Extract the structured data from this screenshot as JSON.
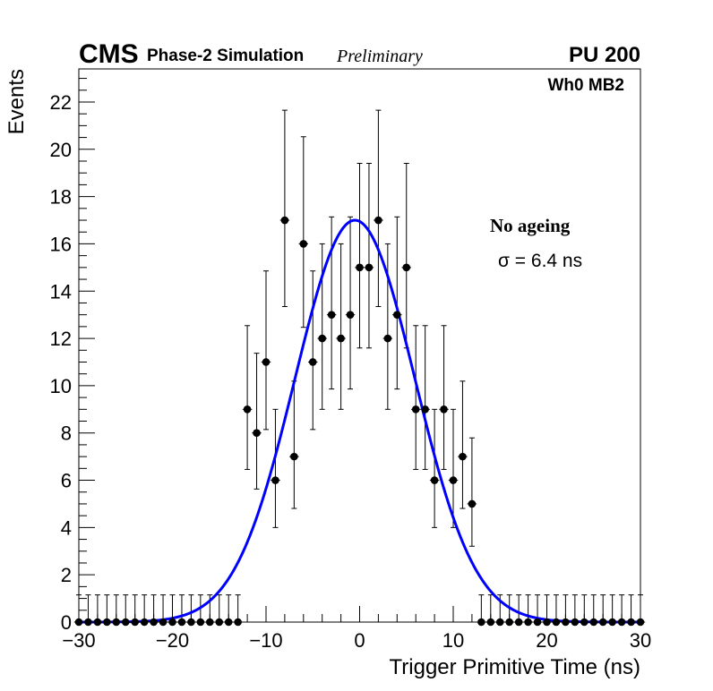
{
  "chart_data": {
    "type": "scatter",
    "title": "",
    "header": {
      "experiment": "CMS",
      "label": "Phase-2 Simulation",
      "status": "Preliminary",
      "pileup": "PU 200",
      "region": "Wh0 MB2"
    },
    "xlabel": "Trigger Primitive Time (ns)",
    "ylabel": "Events",
    "xlim": [
      -30,
      30
    ],
    "ylim": [
      0,
      23.4
    ],
    "x_ticks": [
      -30,
      -20,
      -10,
      0,
      10,
      20,
      30
    ],
    "x_tick_labels": [
      "−30",
      "−20",
      "−10",
      "0",
      "10",
      "20",
      "30"
    ],
    "y_ticks": [
      0,
      2,
      4,
      6,
      8,
      10,
      12,
      14,
      16,
      18,
      20,
      22
    ],
    "y_tick_labels": [
      "0",
      "2",
      "4",
      "6",
      "8",
      "10",
      "12",
      "14",
      "16",
      "18",
      "20",
      "22"
    ],
    "bin_width": 1,
    "series": [
      {
        "name": "Trigger primitives (histogram)",
        "style": "markers-with-errors",
        "color": "#000000",
        "x": [
          -30,
          -29,
          -28,
          -27,
          -26,
          -25,
          -24,
          -23,
          -22,
          -21,
          -20,
          -19,
          -18,
          -17,
          -16,
          -15,
          -14,
          -13,
          -12,
          -11,
          -10,
          -9,
          -8,
          -7,
          -6,
          -5,
          -4,
          -3,
          -2,
          -1,
          0,
          1,
          2,
          3,
          4,
          5,
          6,
          7,
          8,
          9,
          10,
          11,
          12,
          13,
          14,
          15,
          16,
          17,
          18,
          19,
          20,
          21,
          22,
          23,
          24,
          25,
          26,
          27,
          28,
          29,
          30
        ],
        "values": [
          0,
          0,
          0,
          0,
          0,
          0,
          0,
          0,
          0,
          0,
          0,
          0,
          0,
          0,
          0,
          0,
          0,
          0,
          9,
          8,
          11,
          6,
          17,
          7,
          16,
          11,
          12,
          13,
          12,
          13,
          15,
          15,
          17,
          12,
          13,
          15,
          9,
          9,
          6,
          9,
          6,
          7,
          5,
          0,
          0,
          0,
          0,
          0,
          0,
          0,
          0,
          0,
          0,
          0,
          0,
          0,
          0,
          0,
          0,
          0,
          0
        ]
      },
      {
        "name": "Gaussian fit",
        "style": "line",
        "color": "#0000ff",
        "mean": -0.5,
        "sigma": 6.4,
        "amplitude": 17.0
      }
    ],
    "annotations": {
      "scenario": "No ageing",
      "sigma_label": "σ = 6.4 ns"
    }
  }
}
